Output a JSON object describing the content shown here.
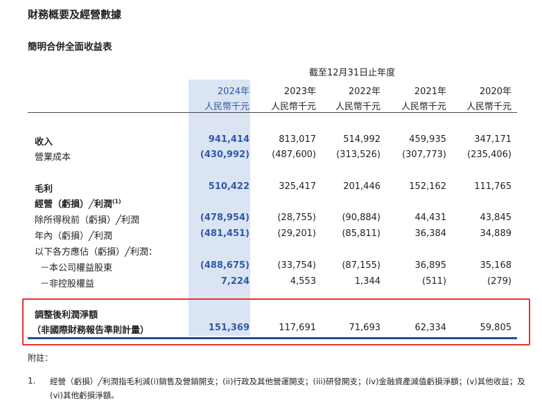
{
  "title": "財務概要及經營數據",
  "subtitle": "簡明合併全面收益表",
  "period_label": "截至12月31日止年度",
  "columns": [
    {
      "year": "2024年",
      "unit": "人民幣千元"
    },
    {
      "year": "2023年",
      "unit": "人民幣千元"
    },
    {
      "year": "2022年",
      "unit": "人民幣千元"
    },
    {
      "year": "2021年",
      "unit": "人民幣千元"
    },
    {
      "year": "2020年",
      "unit": "人民幣千元"
    }
  ],
  "rows": [
    {
      "label": "收入",
      "values": [
        "941,414",
        "813,017",
        "514,992",
        "459,935",
        "347,171"
      ]
    },
    {
      "label": "營業成本",
      "values": [
        "(430,992)",
        "(487,600)",
        "(313,526)",
        "(307,773)",
        "(235,406)"
      ]
    },
    {
      "label": "毛利",
      "values": [
        "510,422",
        "325,417",
        "201,446",
        "152,162",
        "111,765"
      ]
    },
    {
      "label": "經營（虧損）╱利潤",
      "sup": "(1)"
    },
    {
      "label": "除所得稅前（虧損）╱利潤",
      "values": [
        "(478,954)",
        "(28,755)",
        "(90,884)",
        "44,431",
        "43,845"
      ]
    },
    {
      "label": "年內（虧損）╱利潤",
      "values": [
        "(481,451)",
        "(29,201)",
        "(85,811)",
        "36,384",
        "34,889"
      ]
    },
    {
      "label": "以下各方應佔（虧損）╱利潤："
    },
    {
      "label": "－本公司權益股東",
      "values": [
        "(488,675)",
        "(33,754)",
        "(87,155)",
        "36,895",
        "35,168"
      ]
    },
    {
      "label": "－非控股權益",
      "values": [
        "7,224",
        "4,553",
        "1,344",
        "(511)",
        "(279)"
      ]
    },
    {
      "label": "調整後利潤淨額"
    },
    {
      "label": "（非國際財務報告準則計量）",
      "values": [
        "151,369",
        "117,691",
        "71,693",
        "62,334",
        "59,805"
      ]
    }
  ],
  "notes": {
    "heading": "附註：",
    "items": [
      {
        "num": "1.",
        "text": "經營（虧損）╱利潤指毛利減(i)銷售及營銷開支；(ii)行政及其他營運開支；(iii)研發開支；(iv)金融資產減值虧損淨額；(v)其他收益；及(vi)其他虧損淨額。"
      }
    ]
  },
  "colors": {
    "highlight_column": "#dbe4f3",
    "current_year_text": "#2f5aa8",
    "red_box": "#e8302e",
    "blue_rule": "#1f4e9a"
  }
}
